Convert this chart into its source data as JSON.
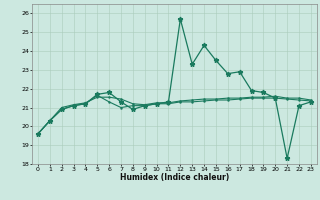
{
  "xlabel": "Humidex (Indice chaleur)",
  "bg_color": "#cce8e0",
  "grid_color": "#aaccbb",
  "line_color": "#1a7a5e",
  "xlim": [
    -0.5,
    23.5
  ],
  "ylim": [
    18,
    26.5
  ],
  "yticks": [
    18,
    19,
    20,
    21,
    22,
    23,
    24,
    25,
    26
  ],
  "xticks": [
    0,
    1,
    2,
    3,
    4,
    5,
    6,
    7,
    8,
    9,
    10,
    11,
    12,
    13,
    14,
    15,
    16,
    17,
    18,
    19,
    20,
    21,
    22,
    23
  ],
  "series": [
    {
      "x": [
        0,
        1,
        2,
        3,
        4,
        5,
        6,
        7,
        8,
        9,
        10,
        11,
        12,
        13,
        14,
        15,
        16,
        17,
        18,
        19,
        20,
        21,
        22,
        23
      ],
      "y": [
        19.6,
        20.3,
        20.9,
        21.1,
        21.2,
        21.7,
        21.8,
        21.3,
        20.9,
        21.1,
        21.2,
        21.3,
        25.7,
        23.3,
        24.3,
        23.5,
        22.8,
        22.9,
        21.9,
        21.8,
        21.5,
        18.3,
        21.1,
        21.3
      ],
      "marker": "*",
      "markersize": 3.5,
      "linewidth": 0.9
    },
    {
      "x": [
        0,
        1,
        2,
        3,
        4,
        5,
        6,
        7,
        8,
        9,
        10,
        11,
        12,
        13,
        14,
        15,
        16,
        17,
        18,
        19,
        20,
        21,
        22,
        23
      ],
      "y": [
        19.6,
        20.3,
        20.9,
        21.1,
        21.2,
        21.65,
        21.3,
        21.0,
        21.1,
        21.1,
        21.2,
        21.2,
        21.3,
        21.3,
        21.35,
        21.4,
        21.4,
        21.45,
        21.5,
        21.5,
        21.5,
        21.45,
        21.4,
        21.35
      ],
      "marker": ".",
      "markersize": 1.5,
      "linewidth": 0.8
    },
    {
      "x": [
        0,
        1,
        2,
        3,
        4,
        5,
        6,
        7,
        8,
        9,
        10,
        11,
        12,
        13,
        14,
        15,
        16,
        17,
        18,
        19,
        20,
        21,
        22,
        23
      ],
      "y": [
        19.6,
        20.3,
        21.0,
        21.15,
        21.25,
        21.55,
        21.55,
        21.45,
        21.2,
        21.15,
        21.25,
        21.25,
        21.35,
        21.4,
        21.45,
        21.45,
        21.5,
        21.5,
        21.55,
        21.55,
        21.6,
        21.5,
        21.5,
        21.4
      ],
      "marker": ".",
      "markersize": 1.5,
      "linewidth": 0.8
    }
  ]
}
